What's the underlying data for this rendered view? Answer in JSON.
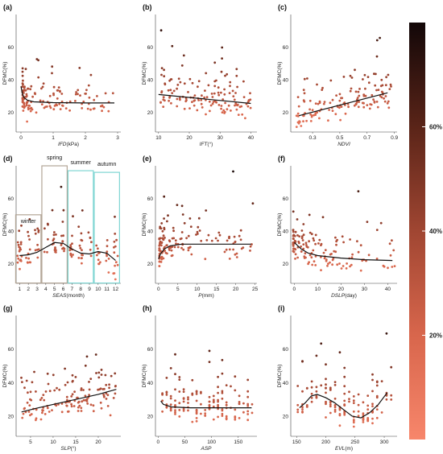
{
  "chart_data": [
    {
      "label": "(a)",
      "type": "scatter",
      "xlabel_italic": "IFD",
      "xlabel_rest": "(kPa)",
      "ylabel": "DFMC(%)",
      "xticks": [
        "0",
        "1",
        "2",
        "3"
      ],
      "xtick_values": [
        0,
        1,
        2,
        3
      ],
      "xlim": [
        -0.15,
        3.1
      ],
      "yticks": [
        "20",
        "40",
        "60"
      ],
      "ytick_values": [
        20,
        40,
        60
      ],
      "ylim": [
        8,
        80
      ],
      "fit": [
        [
          0,
          36
        ],
        [
          0.05,
          31
        ],
        [
          0.1,
          29
        ],
        [
          0.2,
          27.5
        ],
        [
          0.4,
          26.5
        ],
        [
          1,
          26
        ],
        [
          2,
          25.8
        ],
        [
          2.9,
          25.8
        ]
      ]
    },
    {
      "label": "(b)",
      "type": "scatter",
      "xlabel_italic": "IFT",
      "xlabel_rest": "(°)",
      "ylabel": "DFMC(%)",
      "xticks": [
        "10",
        "20",
        "30",
        "40"
      ],
      "xtick_values": [
        10,
        20,
        30,
        40
      ],
      "xlim": [
        9,
        42
      ],
      "yticks": [
        "20",
        "40",
        "60"
      ],
      "ytick_values": [
        20,
        40,
        60
      ],
      "ylim": [
        8,
        80
      ],
      "fit": [
        [
          10,
          31
        ],
        [
          40,
          25.5
        ]
      ]
    },
    {
      "label": "(c)",
      "type": "scatter",
      "xlabel_italic": "NDVI",
      "xlabel_rest": "",
      "ylabel": "DFMC(%)",
      "xticks": [
        "0.3",
        "0.5",
        "0.7",
        "0.9"
      ],
      "xtick_values": [
        0.3,
        0.5,
        0.7,
        0.9
      ],
      "xlim": [
        0.14,
        0.92
      ],
      "yticks": [
        "20",
        "40",
        "60"
      ],
      "ytick_values": [
        20,
        40,
        60
      ],
      "ylim": [
        8,
        80
      ],
      "fit": [
        [
          0.2,
          18
        ],
        [
          0.85,
          32
        ]
      ]
    },
    {
      "label": "(d)",
      "type": "scatter",
      "xlabel_italic": "SEAS",
      "xlabel_rest": "(month)",
      "ylabel": "DFMC(%)",
      "xticks": [
        "1",
        "2",
        "3",
        "4",
        "5",
        "6",
        "7",
        "8",
        "9",
        "10",
        "11",
        "12"
      ],
      "xtick_values": [
        1,
        2,
        3,
        4,
        5,
        6,
        7,
        8,
        9,
        10,
        11,
        12
      ],
      "xlim": [
        0.6,
        12.6
      ],
      "yticks": [
        "20",
        "40",
        "60"
      ],
      "ytick_values": [
        20,
        40,
        60
      ],
      "ylim": [
        8,
        80
      ],
      "seasons": [
        {
          "name": "winter",
          "from": 1,
          "to": 3,
          "color": "#b2a596"
        },
        {
          "name": "spring",
          "from": 4,
          "to": 6,
          "color": "#b2a596"
        },
        {
          "name": "summer",
          "from": 7,
          "to": 9,
          "color": "#7fd6d3"
        },
        {
          "name": "autumn",
          "from": 10,
          "to": 12,
          "color": "#7fd6d3"
        }
      ],
      "fit": [
        [
          1,
          25
        ],
        [
          2,
          25.5
        ],
        [
          3,
          27
        ],
        [
          4,
          30
        ],
        [
          5,
          33
        ],
        [
          6,
          32.5
        ],
        [
          7,
          29
        ],
        [
          8,
          26.5
        ],
        [
          9,
          26
        ],
        [
          10,
          27.5
        ],
        [
          11,
          26.5
        ],
        [
          12,
          22
        ]
      ]
    },
    {
      "label": "(e)",
      "type": "scatter",
      "xlabel_italic": "P",
      "xlabel_rest": "(mm)",
      "ylabel": "DFMC(%)",
      "xticks": [
        "0",
        "5",
        "10",
        "15",
        "20",
        "25"
      ],
      "xtick_values": [
        0,
        5,
        10,
        15,
        20,
        25
      ],
      "xlim": [
        -0.8,
        25.5
      ],
      "yticks": [
        "20",
        "40",
        "60"
      ],
      "ytick_values": [
        20,
        40,
        60
      ],
      "ylim": [
        8,
        80
      ],
      "fit": [
        [
          0,
          23
        ],
        [
          0.5,
          26
        ],
        [
          1.5,
          29
        ],
        [
          3,
          31
        ],
        [
          6,
          32
        ],
        [
          10,
          32
        ],
        [
          15,
          32
        ],
        [
          20,
          32
        ],
        [
          24,
          32
        ]
      ]
    },
    {
      "label": "(f)",
      "type": "scatter",
      "xlabel_italic": "DSLP",
      "xlabel_rest": "(day)",
      "ylabel": "DFMC(%)",
      "xticks": [
        "0",
        "10",
        "20",
        "30",
        "40"
      ],
      "xtick_values": [
        0,
        10,
        20,
        30,
        40
      ],
      "xlim": [
        -1.5,
        44
      ],
      "yticks": [
        "20",
        "40",
        "60"
      ],
      "ytick_values": [
        20,
        40,
        60
      ],
      "ylim": [
        8,
        80
      ],
      "fit": [
        [
          0,
          33
        ],
        [
          3,
          29
        ],
        [
          6,
          26.5
        ],
        [
          10,
          25
        ],
        [
          20,
          23.5
        ],
        [
          30,
          22.5
        ],
        [
          42,
          22
        ]
      ]
    },
    {
      "label": "(g)",
      "type": "scatter",
      "xlabel_italic": "SLP",
      "xlabel_rest": "(°)",
      "ylabel": "DFMC(%)",
      "xticks": [
        "5",
        "10",
        "15",
        "20"
      ],
      "xtick_values": [
        5,
        10,
        15,
        20
      ],
      "xlim": [
        1.8,
        25
      ],
      "yticks": [
        "20",
        "40",
        "60"
      ],
      "ytick_values": [
        20,
        40,
        60
      ],
      "ylim": [
        8,
        80
      ],
      "fit": [
        [
          3,
          22.5
        ],
        [
          6,
          24.5
        ],
        [
          10,
          27
        ],
        [
          15,
          30
        ],
        [
          20,
          33
        ],
        [
          24,
          36
        ]
      ]
    },
    {
      "label": "(h)",
      "type": "scatter",
      "xlabel_italic": "ASP",
      "xlabel_rest": "",
      "ylabel": "DFMC(%)",
      "xticks": [
        "0",
        "50",
        "100",
        "150"
      ],
      "xtick_values": [
        0,
        50,
        100,
        150
      ],
      "xlim": [
        -5,
        185
      ],
      "yticks": [
        "20",
        "40",
        "60"
      ],
      "ytick_values": [
        20,
        40,
        60
      ],
      "ylim": [
        8,
        80
      ],
      "fit": [
        [
          5,
          29
        ],
        [
          10,
          27
        ],
        [
          25,
          25.5
        ],
        [
          60,
          25
        ],
        [
          100,
          25
        ],
        [
          150,
          25
        ],
        [
          175,
          25
        ]
      ]
    },
    {
      "label": "(i)",
      "type": "scatter",
      "xlabel_italic": "EVL",
      "xlabel_rest": "(m)",
      "ylabel": "DFMC(%)",
      "xticks": [
        "150",
        "200",
        "250",
        "300"
      ],
      "xtick_values": [
        150,
        200,
        250,
        300
      ],
      "xlim": [
        140,
        322
      ],
      "yticks": [
        "20",
        "40",
        "60"
      ],
      "ytick_values": [
        20,
        40,
        60
      ],
      "ylim": [
        8,
        80
      ],
      "fit": [
        [
          155,
          25
        ],
        [
          165,
          28
        ],
        [
          175,
          32
        ],
        [
          185,
          33
        ],
        [
          200,
          31
        ],
        [
          215,
          28
        ],
        [
          230,
          24
        ],
        [
          245,
          20
        ],
        [
          260,
          19
        ],
        [
          275,
          22
        ],
        [
          290,
          27
        ],
        [
          305,
          34
        ]
      ]
    }
  ],
  "colorbar": {
    "ticks": [
      "20%",
      "40%",
      "60%"
    ],
    "tick_values": [
      20,
      40,
      60
    ],
    "range": [
      0,
      80
    ],
    "low_color": "#f58a6c",
    "high_color": "#120708"
  },
  "colors": {
    "fit_line": "#111111",
    "season_box_warm": "#b2a596",
    "season_box_cool": "#7fd6d3"
  }
}
